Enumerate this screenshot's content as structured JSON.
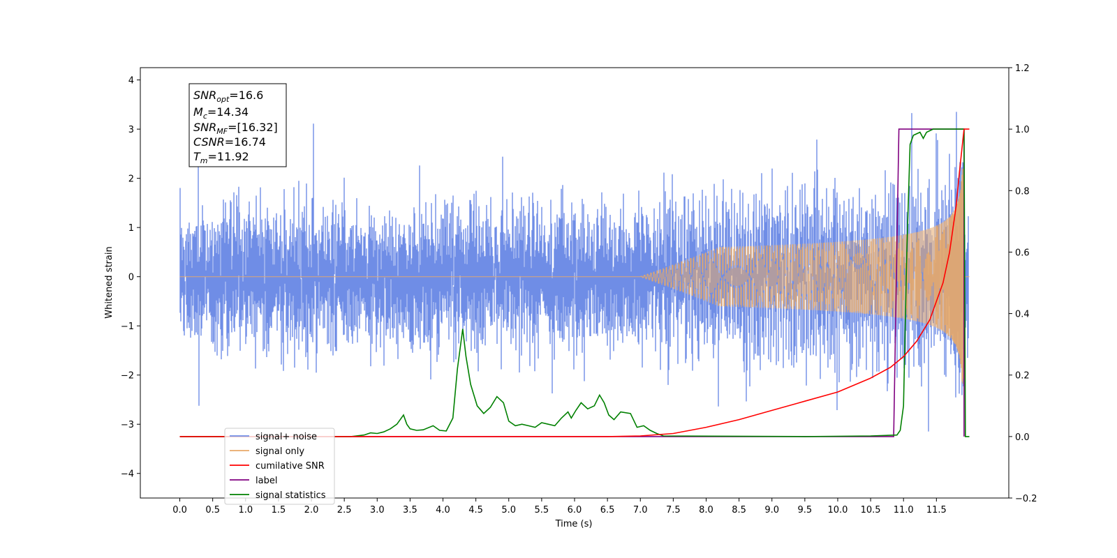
{
  "chart_data": {
    "type": "line",
    "title": "",
    "xlabel": "Time (s)",
    "ylabel": "Whitened strain",
    "xlim": [
      -0.6,
      12.6
    ],
    "ylim": [
      -4.5,
      4.25
    ],
    "y2lim": [
      -0.2,
      1.2
    ],
    "grid": false,
    "legend_position": "lower-left",
    "x_ticks": [
      "0.0",
      "0.5",
      "1.0",
      "1.5",
      "2.0",
      "2.5",
      "3.0",
      "3.5",
      "4.0",
      "4.5",
      "5.0",
      "5.5",
      "6.0",
      "6.5",
      "7.0",
      "7.5",
      "8.0",
      "8.5",
      "9.0",
      "9.5",
      "10.0",
      "10.5",
      "11.0",
      "11.5"
    ],
    "y_ticks": [
      "−4",
      "−3",
      "−2",
      "−1",
      "0",
      "1",
      "2",
      "3",
      "4"
    ],
    "y2_ticks": [
      "−0.2",
      "0.0",
      "0.2",
      "0.4",
      "0.6",
      "0.8",
      "1.0",
      "1.2"
    ],
    "info_box": {
      "snr_opt": {
        "symbol": "SNR",
        "sub": "opt",
        "value": "=16.6"
      },
      "mc": {
        "symbol": "M",
        "sub": "c",
        "value": "=14.34"
      },
      "snr_mf": {
        "symbol": "SNR",
        "sub": "MF",
        "value": "=[16.32]"
      },
      "csnr": {
        "symbol": "CSNR",
        "value": "=16.74"
      },
      "tm": {
        "symbol": "T",
        "sub": "m",
        "value": "=11.92"
      }
    },
    "series": [
      {
        "name": "signal+ noise",
        "color": "#6f8de6",
        "axis": "left",
        "t_end": 11.99,
        "noise_sigma": 0.65
      },
      {
        "name": "signal only",
        "color": "#e8a868",
        "axis": "left",
        "t_start": 7.0,
        "t_end": 11.92,
        "peak_amplitude": 2.2
      },
      {
        "name": "cumilative SNR",
        "color": "#ff0000",
        "axis": "right",
        "x": [
          0.0,
          6.5,
          7.0,
          7.5,
          8.0,
          8.5,
          9.0,
          9.5,
          10.0,
          10.5,
          10.8,
          11.0,
          11.2,
          11.4,
          11.6,
          11.7,
          11.8,
          11.85,
          11.9,
          11.92,
          12.0
        ],
        "y": [
          0.0,
          0.0,
          0.002,
          0.01,
          0.03,
          0.055,
          0.085,
          0.115,
          0.145,
          0.19,
          0.225,
          0.26,
          0.31,
          0.38,
          0.5,
          0.6,
          0.75,
          0.86,
          0.96,
          1.0,
          1.0
        ]
      },
      {
        "name": "label",
        "color": "#800080",
        "axis": "right",
        "x": [
          0.0,
          10.85,
          10.93,
          11.92,
          11.92
        ],
        "y": [
          0.0,
          0.0,
          1.0,
          1.0,
          0.0
        ]
      },
      {
        "name": "signal statistics",
        "color": "#008000",
        "axis": "right",
        "x": [
          0.0,
          2.6,
          2.8,
          2.9,
          3.0,
          3.1,
          3.2,
          3.3,
          3.4,
          3.45,
          3.5,
          3.6,
          3.7,
          3.85,
          3.95,
          4.05,
          4.15,
          4.22,
          4.3,
          4.35,
          4.42,
          4.52,
          4.62,
          4.72,
          4.82,
          4.92,
          5.0,
          5.1,
          5.2,
          5.3,
          5.4,
          5.5,
          5.6,
          5.7,
          5.8,
          5.9,
          5.95,
          6.02,
          6.1,
          6.2,
          6.3,
          6.38,
          6.45,
          6.52,
          6.6,
          6.7,
          6.85,
          6.95,
          7.05,
          7.15,
          7.25,
          7.35,
          9.5,
          10.5,
          10.9,
          10.95,
          11.0,
          11.05,
          11.1,
          11.15,
          11.25,
          11.3,
          11.35,
          11.45,
          11.55,
          11.7,
          11.85,
          11.92,
          11.94,
          12.0
        ],
        "y": [
          0.0,
          0.0,
          0.005,
          0.012,
          0.01,
          0.015,
          0.025,
          0.04,
          0.07,
          0.04,
          0.025,
          0.02,
          0.022,
          0.035,
          0.02,
          0.018,
          0.06,
          0.22,
          0.35,
          0.26,
          0.17,
          0.1,
          0.075,
          0.095,
          0.13,
          0.11,
          0.05,
          0.035,
          0.04,
          0.035,
          0.03,
          0.045,
          0.04,
          0.035,
          0.06,
          0.08,
          0.06,
          0.085,
          0.11,
          0.09,
          0.1,
          0.135,
          0.11,
          0.07,
          0.055,
          0.08,
          0.075,
          0.03,
          0.035,
          0.02,
          0.01,
          0.002,
          0.0,
          0.002,
          0.005,
          0.02,
          0.1,
          0.6,
          0.95,
          0.98,
          0.99,
          0.97,
          0.99,
          1.0,
          1.0,
          1.0,
          1.0,
          1.0,
          0.0,
          0.0
        ]
      }
    ]
  }
}
